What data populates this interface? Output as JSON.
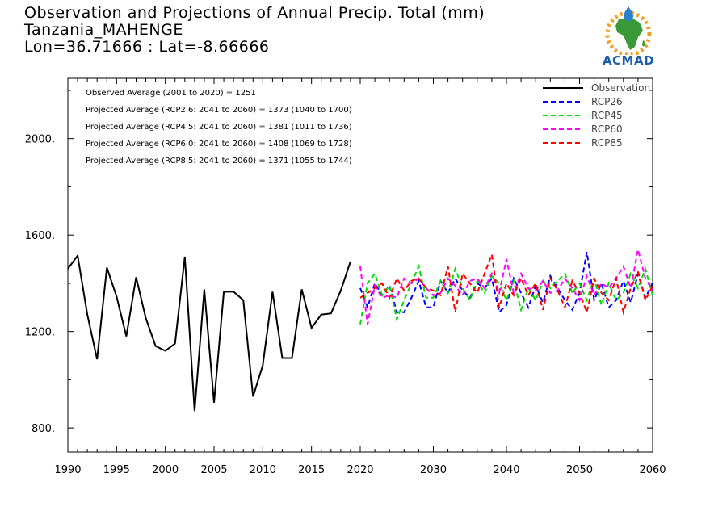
{
  "titles": {
    "line1": "Observation and Projections of Annual Precip. Total (mm)",
    "line2": "Tanzania_MAHENGE",
    "line3": "Lon=36.71666 : Lat=-8.66666"
  },
  "logo": {
    "text": "ACMAD",
    "icon": "africa-map-logo"
  },
  "colors": {
    "Observation": "#000000",
    "RCP26": "#0000ff",
    "RCP45": "#00dd00",
    "RCP60": "#ff00ff",
    "RCP85": "#ff0000"
  },
  "stats": [
    "Observed Average (2001 to 2020) = 1251",
    "Projected Average (RCP2.6: 2041 to 2060) = 1373 (1040 to 1700)",
    "Projected Average (RCP4.5: 2041 to 2060) = 1381 (1011 to 1736)",
    "Projected Average (RCP6.0: 2041 to 2060) = 1408 (1069 to 1728)",
    "Projected Average (RCP8.5: 2041 to 2060) = 1371 (1055 to 1744)"
  ],
  "chart_data": {
    "type": "line",
    "title": "Observation and Projections of Annual Precip. Total (mm)",
    "xlim": [
      1990,
      2060
    ],
    "ylim": [
      700,
      2250
    ],
    "x_ticks": [
      1990,
      1995,
      2000,
      2005,
      2010,
      2015,
      2020,
      2030,
      2040,
      2050,
      2060
    ],
    "y_ticks": [
      800,
      1200,
      1600,
      2000
    ],
    "y_tick_labels": [
      "800.",
      "1200.",
      "1600.",
      "2000."
    ],
    "legend_position": "top-right",
    "grid": false,
    "series": [
      {
        "name": "Observation",
        "style": "solid",
        "x": [
          1990,
          1991,
          1992,
          1993,
          1994,
          1995,
          1996,
          1997,
          1998,
          1999,
          2000,
          2001,
          2002,
          2003,
          2004,
          2005,
          2006,
          2007,
          2008,
          2009,
          2010,
          2011,
          2012,
          2013,
          2014,
          2015,
          2016,
          2017,
          2018,
          2019,
          2020
        ],
        "values": [
          1460,
          1515,
          1270,
          1085,
          1465,
          1345,
          1180,
          1425,
          1255,
          1140,
          1120,
          1150,
          1510,
          870,
          1375,
          905,
          1365,
          1365,
          1330,
          930,
          1060,
          1365,
          1090,
          1090,
          1375,
          1215,
          1270,
          1275,
          1370,
          1490,
          null
        ]
      },
      {
        "name": "RCP26",
        "style": "dashed",
        "x": [
          2020,
          2021,
          2022,
          2023,
          2024,
          2025,
          2026,
          2027,
          2028,
          2029,
          2030,
          2031,
          2032,
          2033,
          2034,
          2035,
          2036,
          2037,
          2038,
          2039,
          2040,
          2041,
          2042,
          2043,
          2044,
          2045,
          2046,
          2047,
          2048,
          2049,
          2050,
          2051,
          2052,
          2053,
          2054,
          2055,
          2056,
          2057,
          2058,
          2059,
          2060
        ],
        "values": [
          1380,
          1300,
          1400,
          1350,
          1390,
          1280,
          1280,
          1340,
          1410,
          1300,
          1300,
          1410,
          1360,
          1420,
          1370,
          1340,
          1400,
          1380,
          1420,
          1280,
          1310,
          1420,
          1360,
          1300,
          1390,
          1320,
          1430,
          1380,
          1330,
          1290,
          1360,
          1530,
          1330,
          1400,
          1300,
          1330,
          1410,
          1320,
          1440,
          1340,
          1400
        ]
      },
      {
        "name": "RCP45",
        "style": "dashed",
        "x": [
          2020,
          2021,
          2022,
          2023,
          2024,
          2025,
          2026,
          2027,
          2028,
          2029,
          2030,
          2031,
          2032,
          2033,
          2034,
          2035,
          2036,
          2037,
          2038,
          2039,
          2040,
          2041,
          2042,
          2043,
          2044,
          2045,
          2046,
          2047,
          2048,
          2049,
          2050,
          2051,
          2052,
          2053,
          2054,
          2055,
          2056,
          2057,
          2058,
          2059,
          2060
        ],
        "values": [
          1230,
          1400,
          1440,
          1350,
          1390,
          1250,
          1330,
          1400,
          1470,
          1340,
          1340,
          1410,
          1360,
          1460,
          1380,
          1330,
          1410,
          1360,
          1430,
          1400,
          1330,
          1410,
          1290,
          1380,
          1330,
          1410,
          1380,
          1410,
          1440,
          1360,
          1400,
          1330,
          1420,
          1310,
          1400,
          1330,
          1360,
          1440,
          1380,
          1460,
          1350
        ]
      },
      {
        "name": "RCP60",
        "style": "dashed",
        "x": [
          2020,
          2021,
          2022,
          2023,
          2024,
          2025,
          2026,
          2027,
          2028,
          2029,
          2030,
          2031,
          2032,
          2033,
          2034,
          2035,
          2036,
          2037,
          2038,
          2039,
          2040,
          2041,
          2042,
          2043,
          2044,
          2045,
          2046,
          2047,
          2048,
          2049,
          2050,
          2051,
          2052,
          2053,
          2054,
          2055,
          2056,
          2057,
          2058,
          2059,
          2060
        ],
        "values": [
          1470,
          1230,
          1390,
          1340,
          1350,
          1340,
          1420,
          1400,
          1420,
          1380,
          1350,
          1360,
          1420,
          1390,
          1350,
          1410,
          1420,
          1380,
          1440,
          1360,
          1500,
          1360,
          1440,
          1380,
          1370,
          1410,
          1360,
          1370,
          1420,
          1380,
          1330,
          1430,
          1350,
          1400,
          1380,
          1420,
          1470,
          1380,
          1540,
          1420,
          1370
        ]
      },
      {
        "name": "RCP85",
        "style": "dashed",
        "x": [
          2020,
          2021,
          2022,
          2023,
          2024,
          2025,
          2026,
          2027,
          2028,
          2029,
          2030,
          2031,
          2032,
          2033,
          2034,
          2035,
          2036,
          2037,
          2038,
          2039,
          2040,
          2041,
          2042,
          2043,
          2044,
          2045,
          2046,
          2047,
          2048,
          2049,
          2050,
          2051,
          2052,
          2053,
          2054,
          2055,
          2056,
          2057,
          2058,
          2059,
          2060
        ],
        "values": [
          1340,
          1360,
          1380,
          1400,
          1340,
          1420,
          1370,
          1410,
          1420,
          1380,
          1370,
          1350,
          1470,
          1280,
          1440,
          1400,
          1360,
          1440,
          1520,
          1300,
          1400,
          1350,
          1420,
          1350,
          1400,
          1290,
          1420,
          1370,
          1300,
          1410,
          1360,
          1280,
          1420,
          1360,
          1330,
          1420,
          1280,
          1380,
          1450,
          1330,
          1390
        ]
      }
    ]
  }
}
